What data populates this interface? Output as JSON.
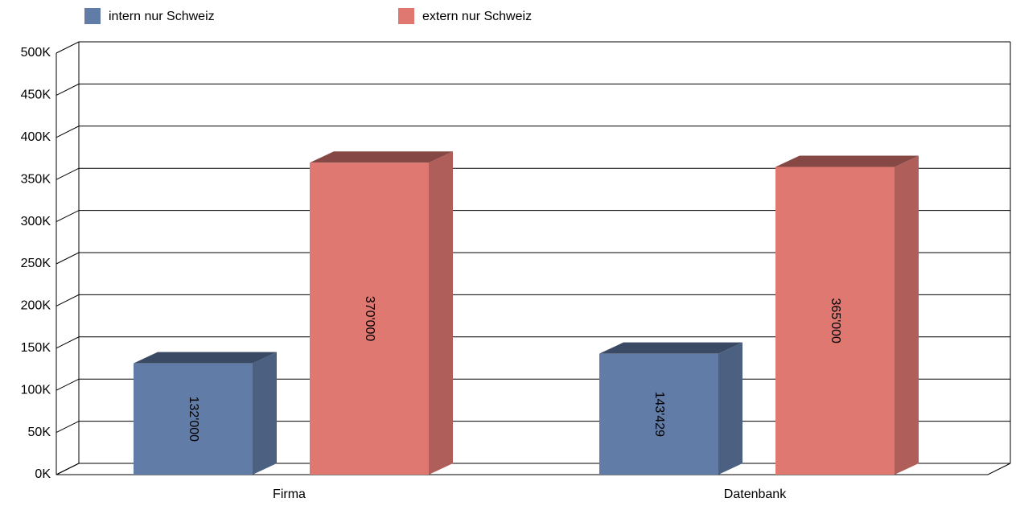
{
  "chart_data": {
    "type": "bar3d",
    "categories": [
      "Firma",
      "Datenbank"
    ],
    "series": [
      {
        "name": "intern nur Schweiz",
        "color": "#617ca6",
        "values": [
          132000,
          143429
        ],
        "value_labels": [
          "132'000",
          "143'429"
        ]
      },
      {
        "name": "extern nur Schweiz",
        "color": "#e07872",
        "values": [
          370000,
          365000
        ],
        "value_labels": [
          "370'000",
          "365'000"
        ]
      }
    ],
    "ylim": [
      0,
      500000
    ],
    "yticks": [
      {
        "value": 0,
        "label": "0K"
      },
      {
        "value": 50000,
        "label": "50K"
      },
      {
        "value": 100000,
        "label": "100K"
      },
      {
        "value": 150000,
        "label": "150K"
      },
      {
        "value": 200000,
        "label": "200K"
      },
      {
        "value": 250000,
        "label": "250K"
      },
      {
        "value": 300000,
        "label": "300K"
      },
      {
        "value": 350000,
        "label": "350K"
      },
      {
        "value": 400000,
        "label": "400K"
      },
      {
        "value": 450000,
        "label": "450K"
      },
      {
        "value": 500000,
        "label": "500K"
      }
    ],
    "grid": true,
    "legend": "top"
  }
}
